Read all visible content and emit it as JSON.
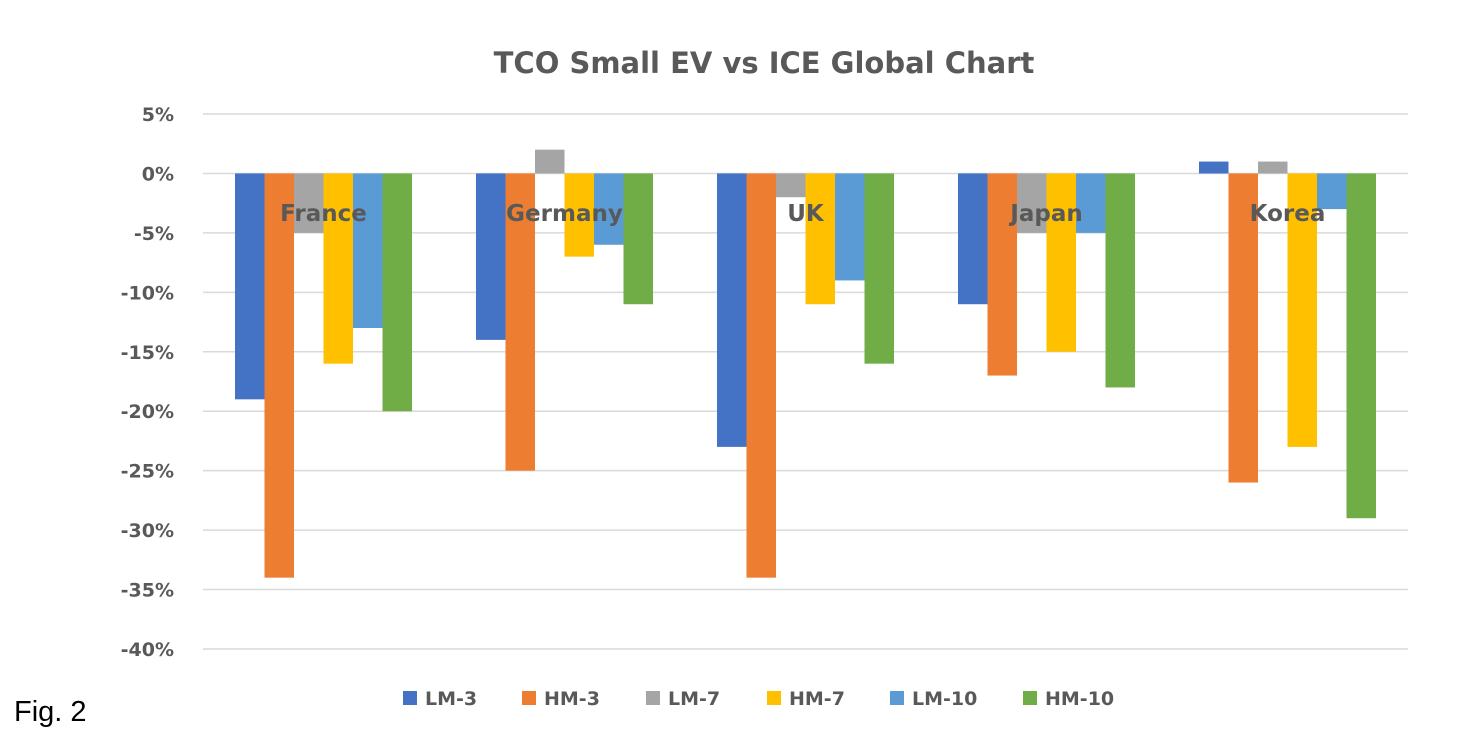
{
  "caption": "Fig. 2",
  "colors": {
    "LM-3": "#4472c4",
    "HM-3": "#ed7d31",
    "LM-7": "#a5a5a5",
    "HM-7": "#ffc000",
    "LM-10": "#5b9bd5",
    "HM-10": "#70ad47",
    "grid": "#d9d9d9",
    "text": "#595959"
  },
  "chart_data": {
    "type": "bar",
    "title": "TCO Small EV vs ICE Global Chart",
    "xlabel": "",
    "ylabel": "",
    "ylim": [
      -40,
      5
    ],
    "y_ticks": [
      5,
      0,
      -5,
      -10,
      -15,
      -20,
      -25,
      -30,
      -35,
      -40
    ],
    "y_tick_labels": [
      "5%",
      "0%",
      "-5%",
      "-10%",
      "-15%",
      "-20%",
      "-25%",
      "-30%",
      "-35%",
      "-40%"
    ],
    "value_unit": "%",
    "grid": true,
    "legend_position": "bottom",
    "categories": [
      "France",
      "Germany",
      "UK",
      "Japan",
      "Korea"
    ],
    "series": [
      {
        "name": "LM-3",
        "values": [
          -19,
          -14,
          -23,
          -11,
          1
        ]
      },
      {
        "name": "HM-3",
        "values": [
          -34,
          -25,
          -34,
          -17,
          -26
        ]
      },
      {
        "name": "LM-7",
        "values": [
          -5,
          2,
          -2,
          -5,
          1
        ]
      },
      {
        "name": "HM-7",
        "values": [
          -16,
          -7,
          -11,
          -15,
          -23
        ]
      },
      {
        "name": "LM-10",
        "values": [
          -13,
          -6,
          -9,
          -5,
          -3
        ]
      },
      {
        "name": "HM-10",
        "values": [
          -20,
          -11,
          -16,
          -18,
          -29
        ]
      }
    ]
  }
}
